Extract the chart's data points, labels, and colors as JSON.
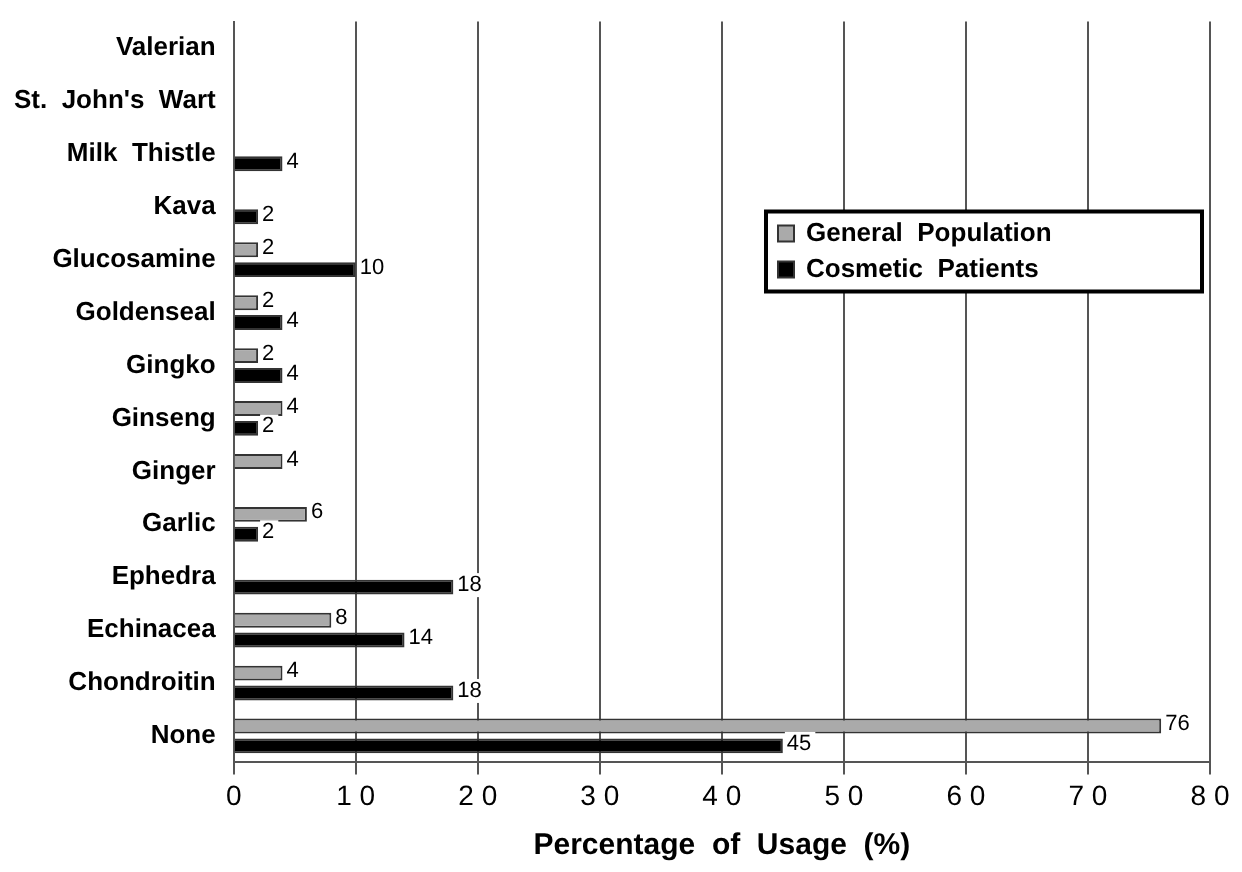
{
  "chart_data": {
    "type": "bar",
    "orientation": "horizontal",
    "xlabel": "Percentage  of  Usage  (%)",
    "categories": [
      "Valerian",
      "St.  John's  Wart",
      "Milk  Thistle",
      "Kava",
      "Glucosamine",
      "Goldenseal",
      "Gingko",
      "Ginseng",
      "Ginger",
      "Garlic",
      "Ephedra",
      "Echinacea",
      "Chondroitin",
      "None"
    ],
    "series": [
      {
        "name": "General  Population",
        "color": "#aaaaaa",
        "values": [
          null,
          null,
          null,
          null,
          2,
          2,
          2,
          4,
          4,
          6,
          null,
          8,
          4,
          76
        ]
      },
      {
        "name": "Cosmetic  Patients",
        "color": "#000000",
        "values": [
          null,
          null,
          4,
          2,
          10,
          4,
          4,
          2,
          null,
          2,
          18,
          14,
          18,
          45
        ]
      }
    ],
    "xlim": [
      0,
      80
    ],
    "xticks": [
      0,
      10,
      20,
      30,
      40,
      50,
      60,
      70,
      80
    ],
    "grid": "x",
    "legend": "top right",
    "data_labels": true
  }
}
